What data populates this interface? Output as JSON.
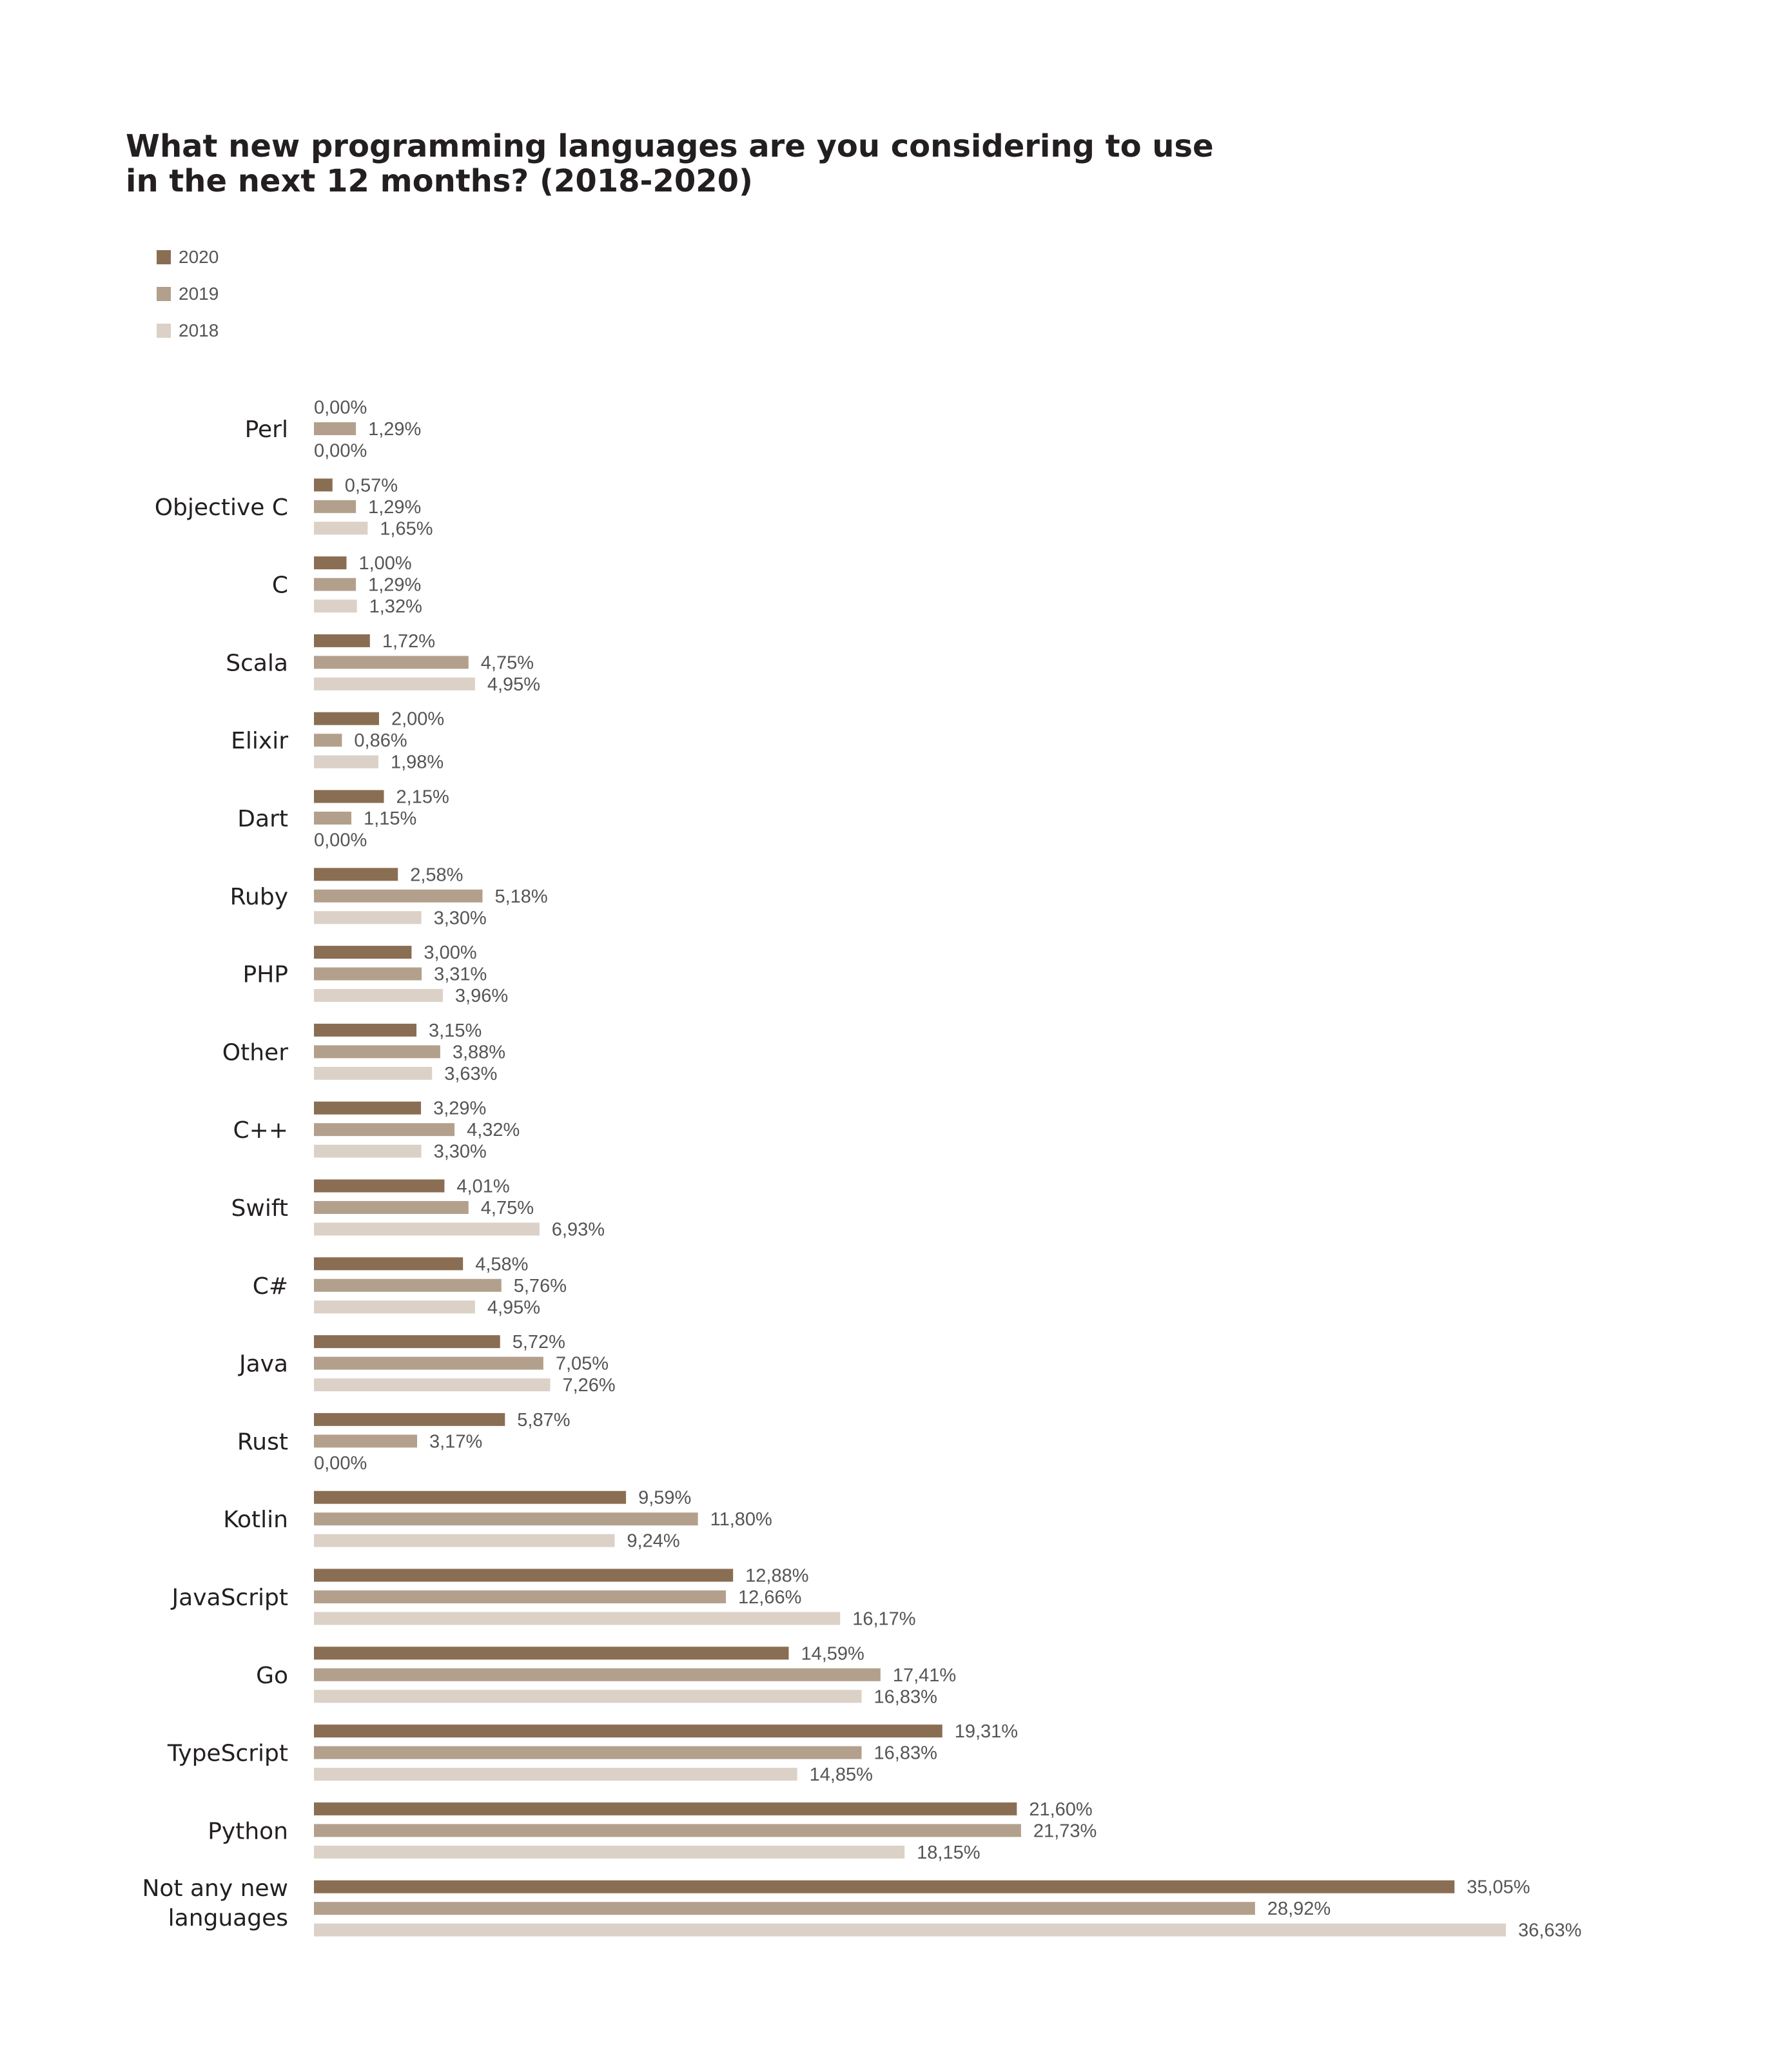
{
  "chart_data": {
    "type": "bar",
    "orientation": "horizontal",
    "title": "What new programming languages are you considering to use in the next 12 months? (2018-2020)",
    "title_lines": [
      "What new programming languages are you considering to use",
      "in the next 12 months? (2018-2020)"
    ],
    "legend": [
      "2020",
      "2019",
      "2018"
    ],
    "legend_placement": "top-left",
    "grid": false,
    "xlim": [
      0,
      36.63
    ],
    "categories": [
      [
        "Perl"
      ],
      [
        "Objective C"
      ],
      [
        "C"
      ],
      [
        "Scala"
      ],
      [
        "Elixir"
      ],
      [
        "Dart"
      ],
      [
        "Ruby"
      ],
      [
        "PHP"
      ],
      [
        "Other"
      ],
      [
        "C++"
      ],
      [
        "Swift"
      ],
      [
        "C#"
      ],
      [
        "Java"
      ],
      [
        "Rust"
      ],
      [
        "Kotlin"
      ],
      [
        "JavaScript"
      ],
      [
        "Go"
      ],
      [
        "TypeScript"
      ],
      [
        "Python"
      ],
      [
        "Not any new",
        "languages"
      ]
    ],
    "series": [
      {
        "name": "2020",
        "color": "#8a6e53",
        "values": [
          0.0,
          0.57,
          1.0,
          1.72,
          2.0,
          2.15,
          2.58,
          3.0,
          3.15,
          3.29,
          4.01,
          4.58,
          5.72,
          5.87,
          9.59,
          12.88,
          14.59,
          19.31,
          21.6,
          35.05
        ],
        "labels": [
          "0,00%",
          "0,57%",
          "1,00%",
          "1,72%",
          "2,00%",
          "2,15%",
          "2,58%",
          "3,00%",
          "3,15%",
          "3,29%",
          "4,01%",
          "4,58%",
          "5,72%",
          "5,87%",
          "9,59%",
          "12,88%",
          "14,59%",
          "19,31%",
          "21,60%",
          "35,05%"
        ]
      },
      {
        "name": "2019",
        "color": "#b3a08c",
        "values": [
          1.29,
          1.29,
          1.29,
          4.75,
          0.86,
          1.15,
          5.18,
          3.31,
          3.88,
          4.32,
          4.75,
          5.76,
          7.05,
          3.17,
          11.8,
          12.66,
          17.41,
          16.83,
          21.73,
          28.92
        ],
        "labels": [
          "1,29%",
          "1,29%",
          "1,29%",
          "4,75%",
          "0,86%",
          "1,15%",
          "5,18%",
          "3,31%",
          "3,88%",
          "4,32%",
          "4,75%",
          "5,76%",
          "7,05%",
          "3,17%",
          "11,80%",
          "12,66%",
          "17,41%",
          "16,83%",
          "21,73%",
          "28,92%"
        ]
      },
      {
        "name": "2018",
        "color": "#dbd1c6",
        "values": [
          0.0,
          1.65,
          1.32,
          4.95,
          1.98,
          0.0,
          3.3,
          3.96,
          3.63,
          3.3,
          6.93,
          4.95,
          7.26,
          0.0,
          9.24,
          16.17,
          16.83,
          14.85,
          18.15,
          36.63
        ],
        "labels": [
          "0,00%",
          "1,65%",
          "1,32%",
          "4,95%",
          "1,98%",
          "0,00%",
          "3,30%",
          "3,96%",
          "3,63%",
          "3,30%",
          "6,93%",
          "4,95%",
          "7,26%",
          "0,00%",
          "9,24%",
          "16,17%",
          "16,83%",
          "14,85%",
          "18,15%",
          "36,63%"
        ]
      }
    ]
  }
}
